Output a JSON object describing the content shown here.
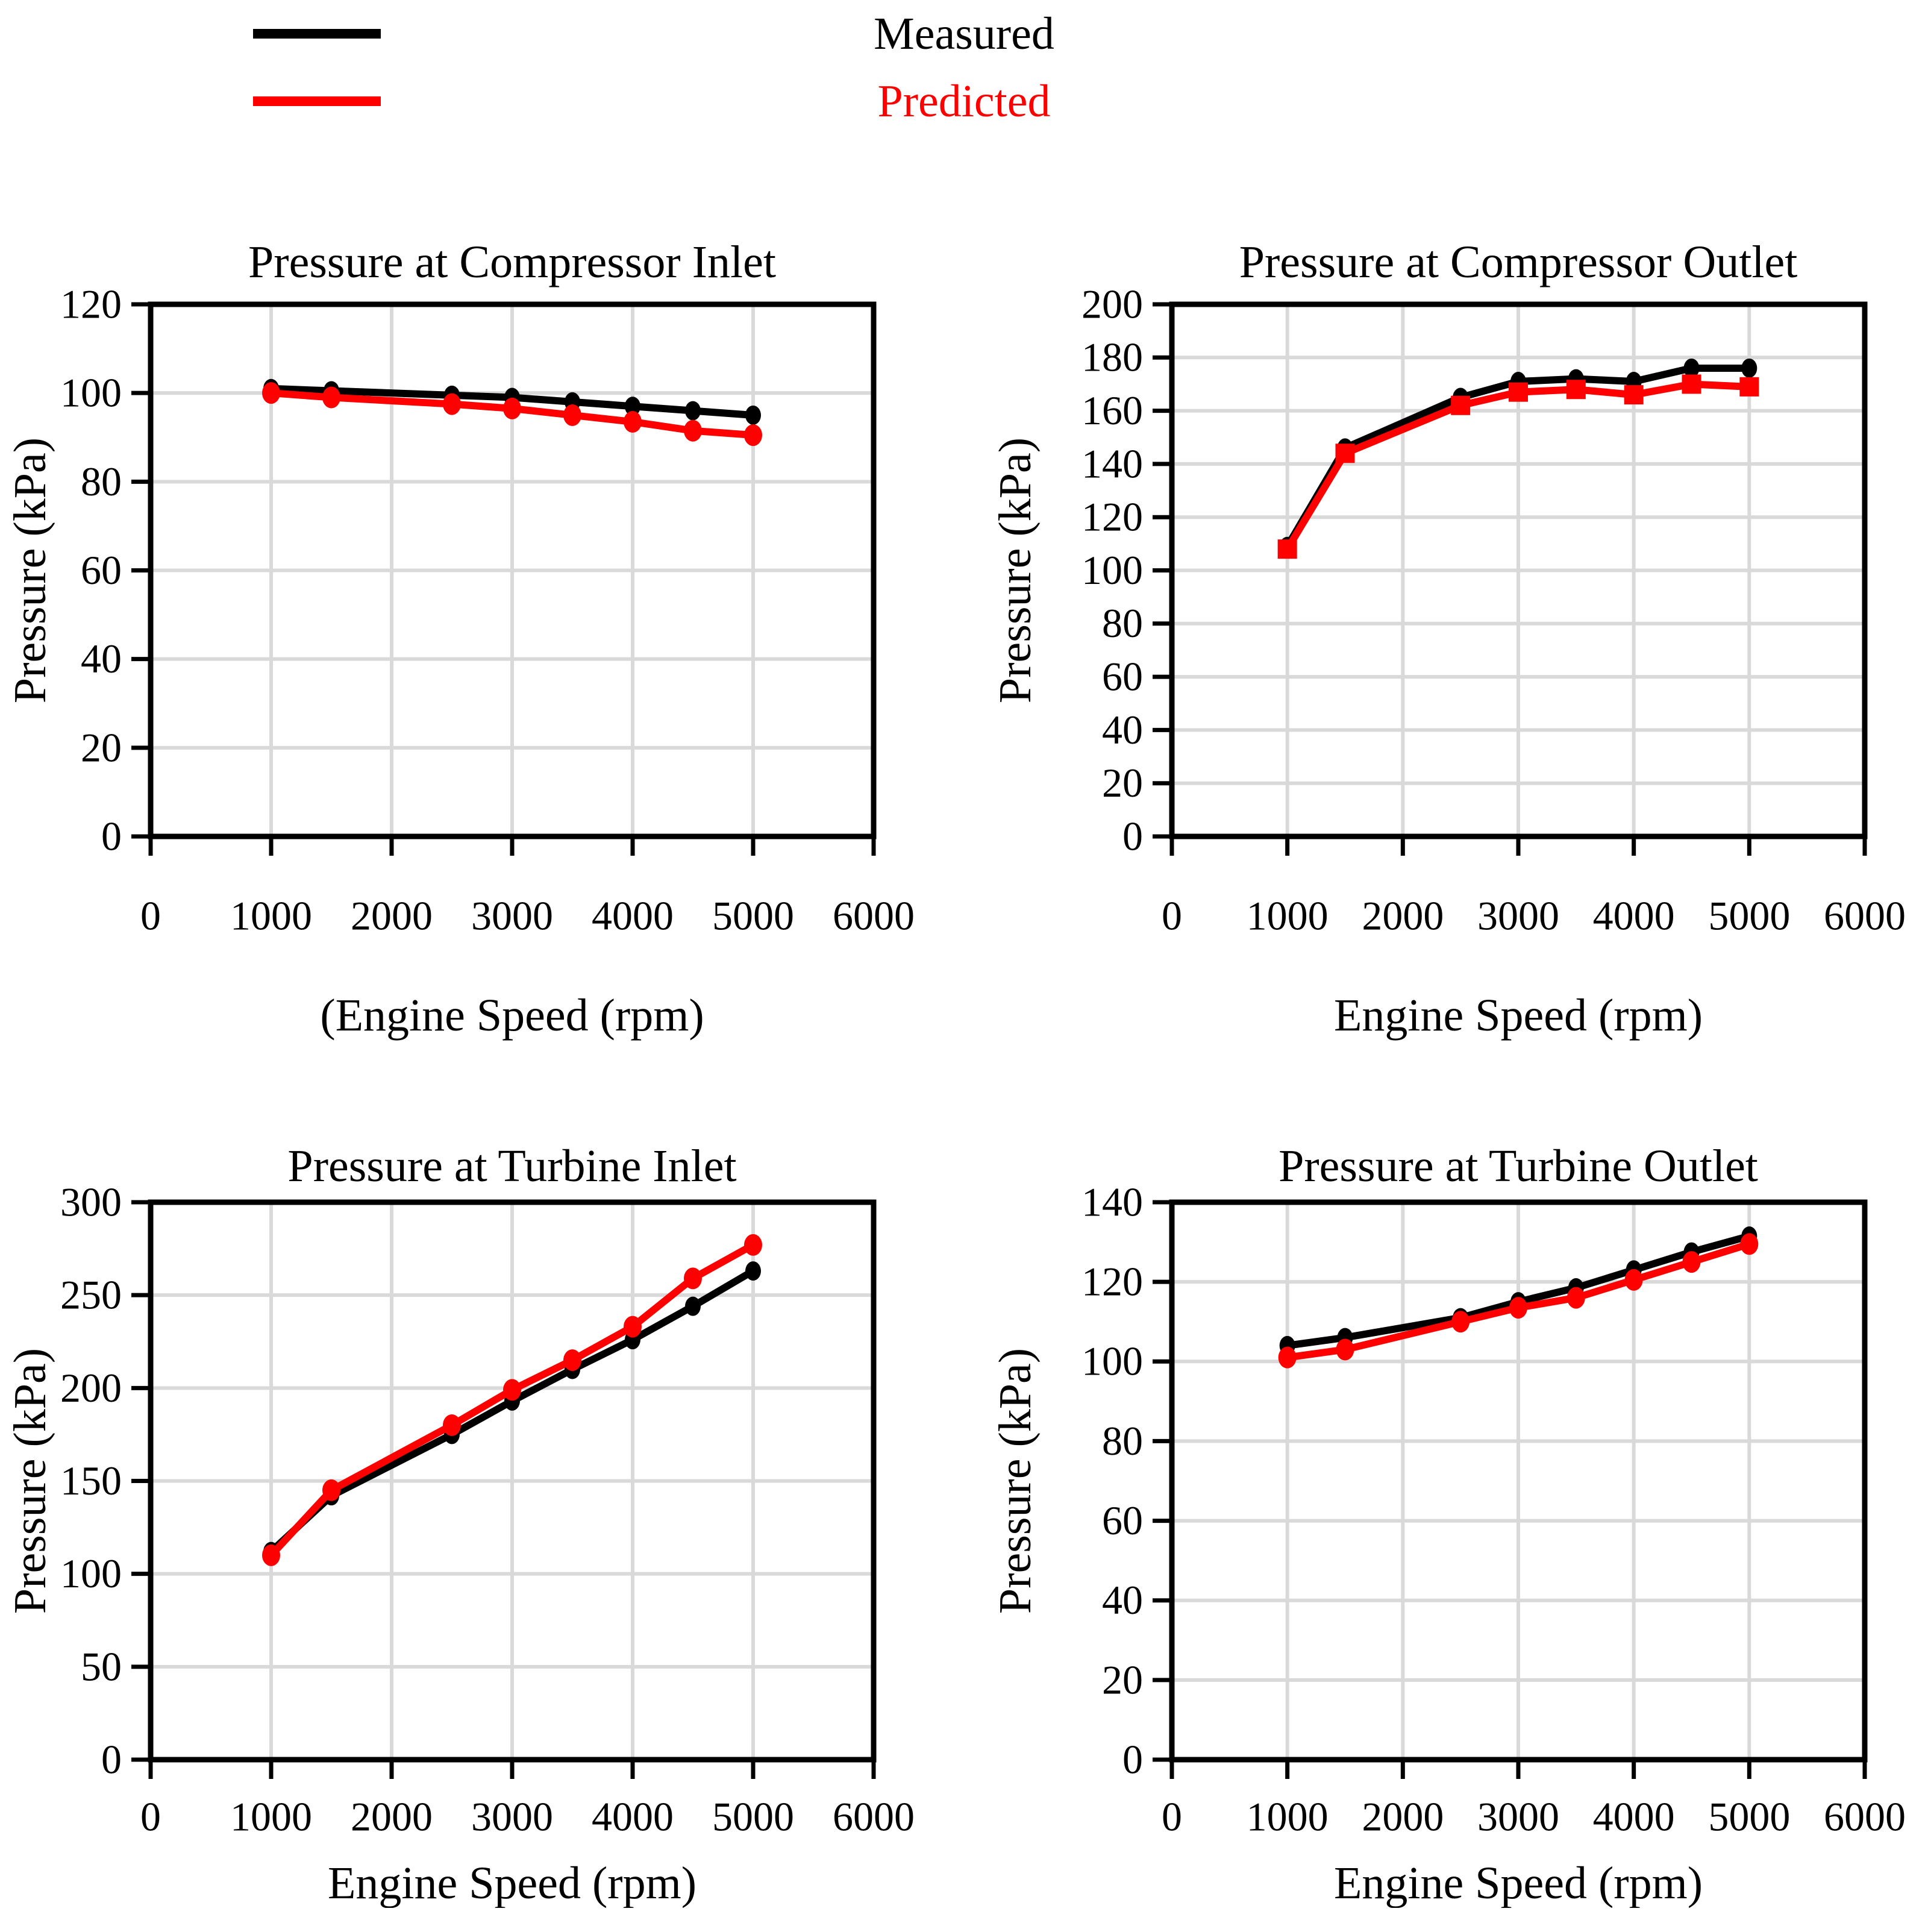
{
  "legend": {
    "items": [
      {
        "label": "Measured",
        "color": "#000000"
      },
      {
        "label": "Predicted",
        "color": "#FF0000"
      }
    ]
  },
  "colors": {
    "measured": "#000000",
    "predicted": "#FF0000",
    "gridline": "#D9D9D9",
    "axis": "#000000",
    "background": "#FFFFFF"
  },
  "chart_data": [
    {
      "type": "line",
      "title": "Pressure at Compressor Inlet",
      "xlabel": "(Engine Speed (rpm)",
      "ylabel": "Pressure (kPa)",
      "xlim": [
        0,
        6000
      ],
      "ylim": [
        0,
        120
      ],
      "xticks": [
        0,
        1000,
        2000,
        3000,
        4000,
        5000,
        6000
      ],
      "yticks": [
        0,
        20,
        40,
        60,
        80,
        100,
        120
      ],
      "grid": true,
      "legend_position": "top-figure",
      "x": [
        1000,
        1500,
        2500,
        3000,
        3500,
        4000,
        4500,
        5000
      ],
      "series": [
        {
          "name": "Measured",
          "color": "#000000",
          "marker": "circle",
          "values": [
            101,
            100.5,
            99.5,
            99,
            98,
            97,
            96,
            95
          ]
        },
        {
          "name": "Predicted",
          "color": "#FF0000",
          "marker": "circle",
          "values": [
            100,
            99,
            97.5,
            96.5,
            95,
            93.5,
            91.5,
            90.5
          ]
        }
      ]
    },
    {
      "type": "line",
      "title": "Pressure at Compressor Outlet",
      "xlabel": "Engine Speed (rpm)",
      "ylabel": "Pressure (kPa)",
      "xlim": [
        0,
        6000
      ],
      "ylim": [
        0,
        200
      ],
      "xticks": [
        0,
        1000,
        2000,
        3000,
        4000,
        5000,
        6000
      ],
      "yticks": [
        0,
        20,
        40,
        60,
        80,
        100,
        120,
        140,
        160,
        180,
        200
      ],
      "grid": true,
      "x": [
        1000,
        1500,
        2500,
        3000,
        3500,
        4000,
        4500,
        5000
      ],
      "series": [
        {
          "name": "Measured",
          "color": "#000000",
          "marker": "circle",
          "values": [
            109,
            146,
            165,
            171,
            172,
            171,
            176,
            176
          ]
        },
        {
          "name": "Predicted",
          "color": "#FF0000",
          "marker": "square",
          "values": [
            108,
            144,
            162,
            167,
            168,
            166,
            170,
            169
          ]
        }
      ]
    },
    {
      "type": "line",
      "title": "Pressure at Turbine Inlet",
      "xlabel": "Engine Speed (rpm)",
      "ylabel": "Pressure (kPa)",
      "xlim": [
        0,
        6000
      ],
      "ylim": [
        0,
        300
      ],
      "xticks": [
        0,
        1000,
        2000,
        3000,
        4000,
        5000,
        6000
      ],
      "yticks": [
        0,
        50,
        100,
        150,
        200,
        250,
        300
      ],
      "grid": true,
      "x": [
        1000,
        1500,
        2500,
        3000,
        3500,
        4000,
        4500,
        5000
      ],
      "series": [
        {
          "name": "Measured",
          "color": "#000000",
          "marker": "circle",
          "values": [
            112,
            142,
            175,
            193,
            210,
            226,
            244,
            263
          ]
        },
        {
          "name": "Predicted",
          "color": "#FF0000",
          "marker": "circle",
          "values": [
            110,
            145,
            180,
            199,
            215,
            233,
            259,
            277
          ]
        }
      ]
    },
    {
      "type": "line",
      "title": "Pressure at Turbine Outlet",
      "xlabel": "Engine Speed (rpm)",
      "ylabel": "Pressure (kPa)",
      "xlim": [
        0,
        6000
      ],
      "ylim": [
        0,
        140
      ],
      "xticks": [
        0,
        1000,
        2000,
        3000,
        4000,
        5000,
        6000
      ],
      "yticks": [
        0,
        20,
        40,
        60,
        80,
        100,
        120,
        140
      ],
      "grid": true,
      "x": [
        1000,
        1500,
        2500,
        3000,
        3500,
        4000,
        4500,
        5000
      ],
      "series": [
        {
          "name": "Measured",
          "color": "#000000",
          "marker": "circle",
          "values": [
            104,
            106,
            111,
            115,
            118.5,
            123,
            127.5,
            131.5
          ]
        },
        {
          "name": "Predicted",
          "color": "#FF0000",
          "marker": "circle",
          "values": [
            101,
            103,
            110,
            113.5,
            116,
            120.5,
            125,
            129.5
          ]
        }
      ]
    }
  ]
}
